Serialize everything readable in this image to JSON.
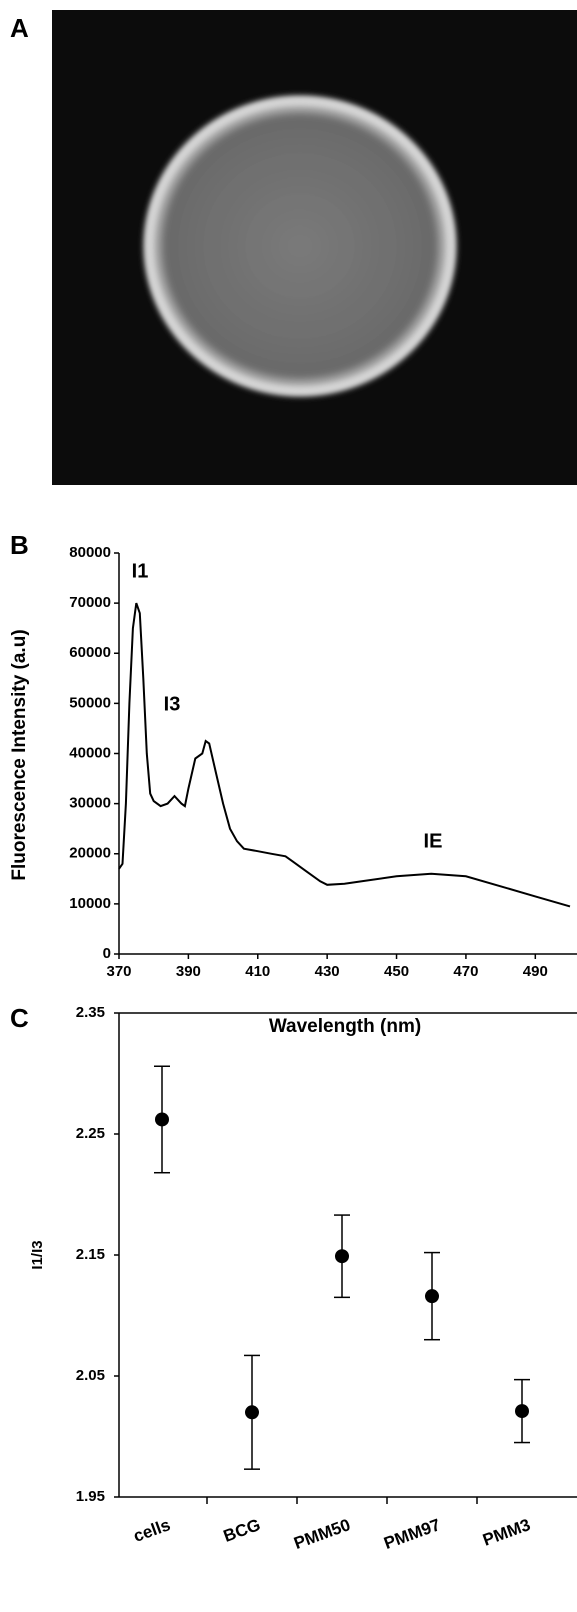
{
  "panel_labels": [
    "A",
    "B",
    "C"
  ],
  "chart_data": [
    {
      "type": "line",
      "xlabel": "Wavelength (nm)",
      "ylabel": "Fluorescence Intensity (a.u)",
      "annotations": [
        "I1",
        "I3",
        "IE"
      ],
      "color": "#000000",
      "x": [
        370,
        371,
        372,
        373,
        374,
        375,
        376,
        377,
        378,
        379,
        380,
        382,
        384,
        386,
        388,
        389,
        390,
        392,
        394,
        395,
        396,
        398,
        400,
        402,
        404,
        406,
        410,
        414,
        418,
        420,
        424,
        428,
        430,
        435,
        440,
        450,
        460,
        470,
        480,
        490,
        500
      ],
      "values": [
        17000,
        18000,
        30000,
        50000,
        65000,
        70000,
        68000,
        55000,
        40000,
        32000,
        30500,
        29500,
        30000,
        31500,
        30000,
        29500,
        33000,
        39000,
        40000,
        42500,
        42000,
        36000,
        30000,
        25000,
        22500,
        21000,
        20500,
        20000,
        19500,
        18500,
        16500,
        14500,
        13800,
        14000,
        14500,
        15500,
        16000,
        15500,
        13500,
        11500,
        9500
      ],
      "xlim": [
        370,
        500
      ],
      "xticks": [
        370,
        390,
        410,
        430,
        450,
        470,
        490
      ],
      "ylim": [
        0,
        80000
      ],
      "yticks": [
        0,
        10000,
        20000,
        30000,
        40000,
        50000,
        60000,
        70000,
        80000
      ]
    },
    {
      "type": "scatter",
      "ylabel": "I1/I3",
      "color": "#000000",
      "categories": [
        "cells",
        "BCG",
        "PMM50",
        "PMM97",
        "PMM3"
      ],
      "values": [
        2.262,
        2.02,
        2.149,
        2.116,
        2.021
      ],
      "errors": [
        0.044,
        0.047,
        0.034,
        0.036,
        0.026
      ],
      "ylim": [
        1.95,
        2.35
      ],
      "yticks": [
        1.95,
        2.05,
        2.15,
        2.25,
        2.35
      ]
    }
  ]
}
